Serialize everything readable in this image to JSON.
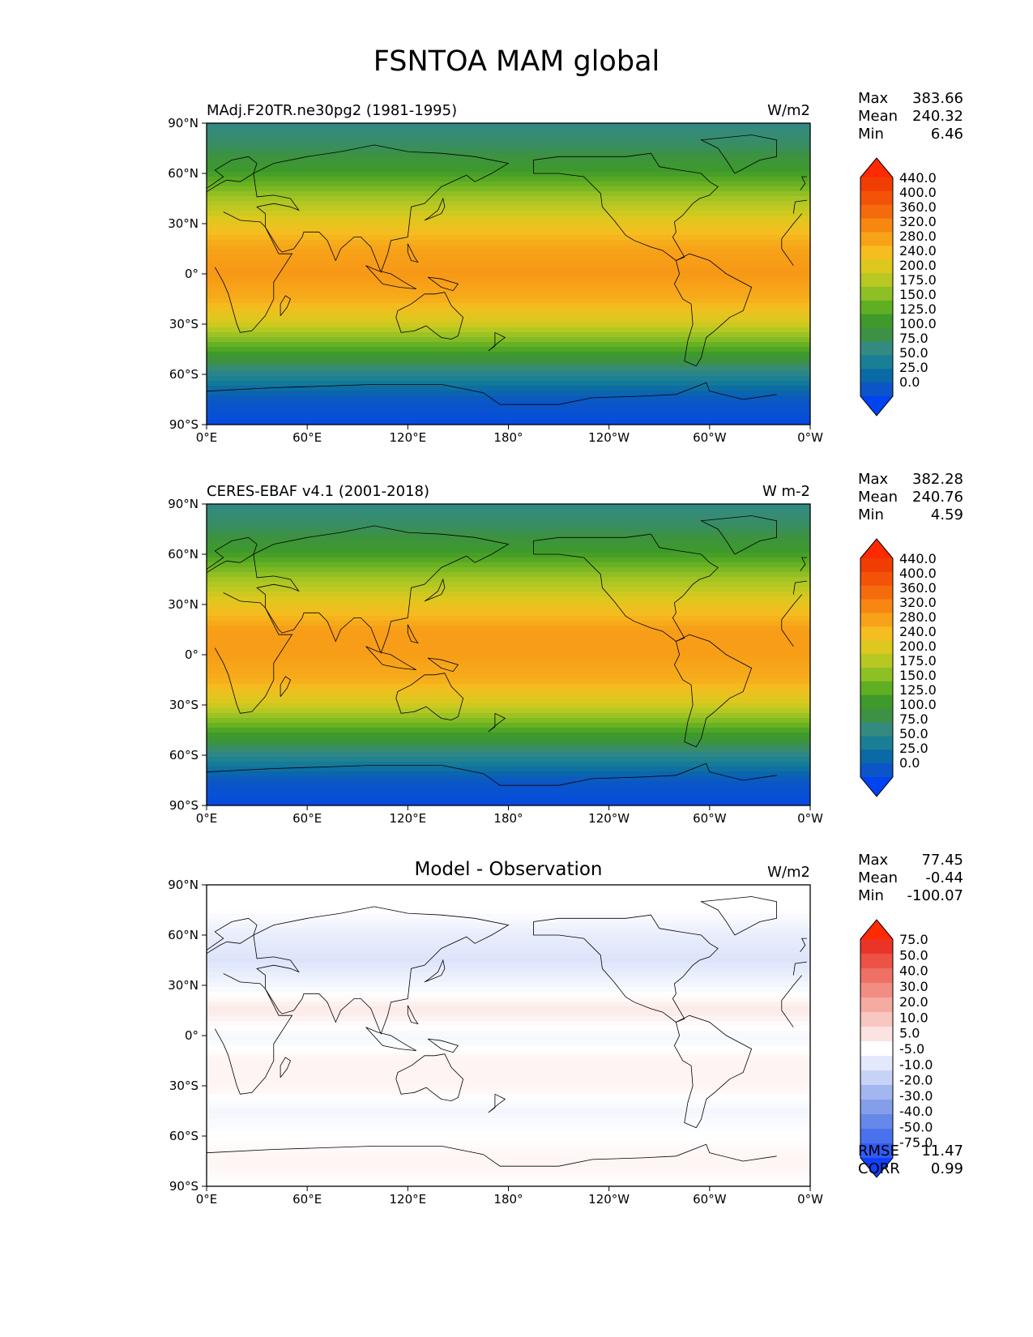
{
  "title": "FSNTOA MAM global",
  "axes": {
    "x_ticks": [
      "0°E",
      "60°E",
      "120°E",
      "180°",
      "120°W",
      "60°W",
      "0°W"
    ],
    "y_ticks": [
      "90°N",
      "60°N",
      "30°N",
      "0°",
      "30°S",
      "60°S",
      "90°S"
    ],
    "xlim": [
      0,
      360
    ],
    "ylim": [
      -90,
      90
    ]
  },
  "panels": [
    {
      "left_title": "MAdj.F20TR.ne30pg2 (1981-1995)",
      "center_title": "",
      "units": "W/m2",
      "stats": [
        {
          "label": "Max",
          "value": "383.66"
        },
        {
          "label": "Mean",
          "value": "240.32"
        },
        {
          "label": "Min",
          "value": "6.46"
        }
      ],
      "colorbar_ticks": [
        "440.0",
        "400.0",
        "360.0",
        "320.0",
        "280.0",
        "240.0",
        "200.0",
        "175.0",
        "150.0",
        "125.0",
        "100.0",
        "75.0",
        "50.0",
        "25.0",
        "0.0"
      ],
      "colorbar_colors": [
        "#0043f0",
        "#0b55c8",
        "#0a6aa6",
        "#1a7f95",
        "#348a80",
        "#3c9144",
        "#3e9a2a",
        "#60ae22",
        "#8ebf24",
        "#b7c822",
        "#dcc81e",
        "#f5bd1f",
        "#f7a218",
        "#f88712",
        "#f46b0e",
        "#f25309",
        "#f03d04",
        "#ff2a00"
      ]
    },
    {
      "left_title": "CERES-EBAF v4.1 (2001-2018)",
      "center_title": "",
      "units": "W m-2",
      "stats": [
        {
          "label": "Max",
          "value": "382.28"
        },
        {
          "label": "Mean",
          "value": "240.76"
        },
        {
          "label": "Min",
          "value": "4.59"
        }
      ],
      "colorbar_ticks": [
        "440.0",
        "400.0",
        "360.0",
        "320.0",
        "280.0",
        "240.0",
        "200.0",
        "175.0",
        "150.0",
        "125.0",
        "100.0",
        "75.0",
        "50.0",
        "25.0",
        "0.0"
      ],
      "colorbar_colors": [
        "#0043f0",
        "#0b55c8",
        "#0a6aa6",
        "#1a7f95",
        "#348a80",
        "#3c9144",
        "#3e9a2a",
        "#60ae22",
        "#8ebf24",
        "#b7c822",
        "#dcc81e",
        "#f5bd1f",
        "#f7a218",
        "#f88712",
        "#f46b0e",
        "#f25309",
        "#f03d04",
        "#ff2a00"
      ]
    },
    {
      "left_title": "",
      "center_title": "Model - Observation",
      "units": "W/m2",
      "stats": [
        {
          "label": "Max",
          "value": "77.45"
        },
        {
          "label": "Mean",
          "value": "-0.44"
        },
        {
          "label": "Min",
          "value": "-100.07"
        }
      ],
      "colorbar_ticks": [
        "75.0",
        "50.0",
        "40.0",
        "30.0",
        "20.0",
        "10.0",
        "5.0",
        "-5.0",
        "-10.0",
        "-20.0",
        "-30.0",
        "-40.0",
        "-50.0",
        "-75.0"
      ],
      "colorbar_colors": [
        "#1040ff",
        "#2f5cf5",
        "#4a72ec",
        "#6688e8",
        "#859ee9",
        "#a4b6ef",
        "#c6d2f6",
        "#e3e9fb",
        "#ffffff",
        "#fbe3e1",
        "#f8c7c2",
        "#f5aaa2",
        "#f28d83",
        "#ef7064",
        "#ec5245",
        "#e93427",
        "#ff2a00"
      ],
      "scores": [
        {
          "label": "RMSE",
          "value": "11.47"
        },
        {
          "label": "CORR",
          "value": "0.99"
        }
      ]
    }
  ],
  "chart_data": [
    {
      "type": "heatmap",
      "title": "MAdj.F20TR.ne30pg2 (1981-1995)",
      "units": "W/m2",
      "x_range": [
        0,
        360
      ],
      "y_range": [
        -90,
        90
      ],
      "zonal_mean_approx": {
        "lat": [
          -90,
          -75,
          -60,
          -45,
          -30,
          -15,
          0,
          15,
          30,
          45,
          60,
          75,
          90
        ],
        "value": [
          10,
          30,
          90,
          170,
          250,
          300,
          320,
          310,
          270,
          220,
          160,
          120,
          100
        ]
      },
      "stats": {
        "max": 383.66,
        "mean": 240.32,
        "min": 6.46
      }
    },
    {
      "type": "heatmap",
      "title": "CERES-EBAF v4.1 (2001-2018)",
      "units": "W m-2",
      "x_range": [
        0,
        360
      ],
      "y_range": [
        -90,
        90
      ],
      "zonal_mean_approx": {
        "lat": [
          -90,
          -75,
          -60,
          -45,
          -30,
          -15,
          0,
          15,
          30,
          45,
          60,
          75,
          90
        ],
        "value": [
          10,
          30,
          95,
          170,
          250,
          300,
          315,
          315,
          270,
          220,
          160,
          120,
          100
        ]
      },
      "stats": {
        "max": 382.28,
        "mean": 240.76,
        "min": 4.59
      }
    },
    {
      "type": "heatmap",
      "title": "Model - Observation",
      "units": "W/m2",
      "x_range": [
        0,
        360
      ],
      "y_range": [
        -90,
        90
      ],
      "zonal_mean_approx": {
        "lat": [
          -90,
          -75,
          -60,
          -45,
          -30,
          -15,
          0,
          15,
          30,
          45,
          60,
          75,
          90
        ],
        "value": [
          0,
          5,
          0,
          -5,
          5,
          5,
          -5,
          10,
          -5,
          -15,
          -10,
          0,
          0
        ]
      },
      "stats": {
        "max": 77.45,
        "mean": -0.44,
        "min": -100.07,
        "rmse": 11.47,
        "corr": 0.99
      }
    }
  ]
}
